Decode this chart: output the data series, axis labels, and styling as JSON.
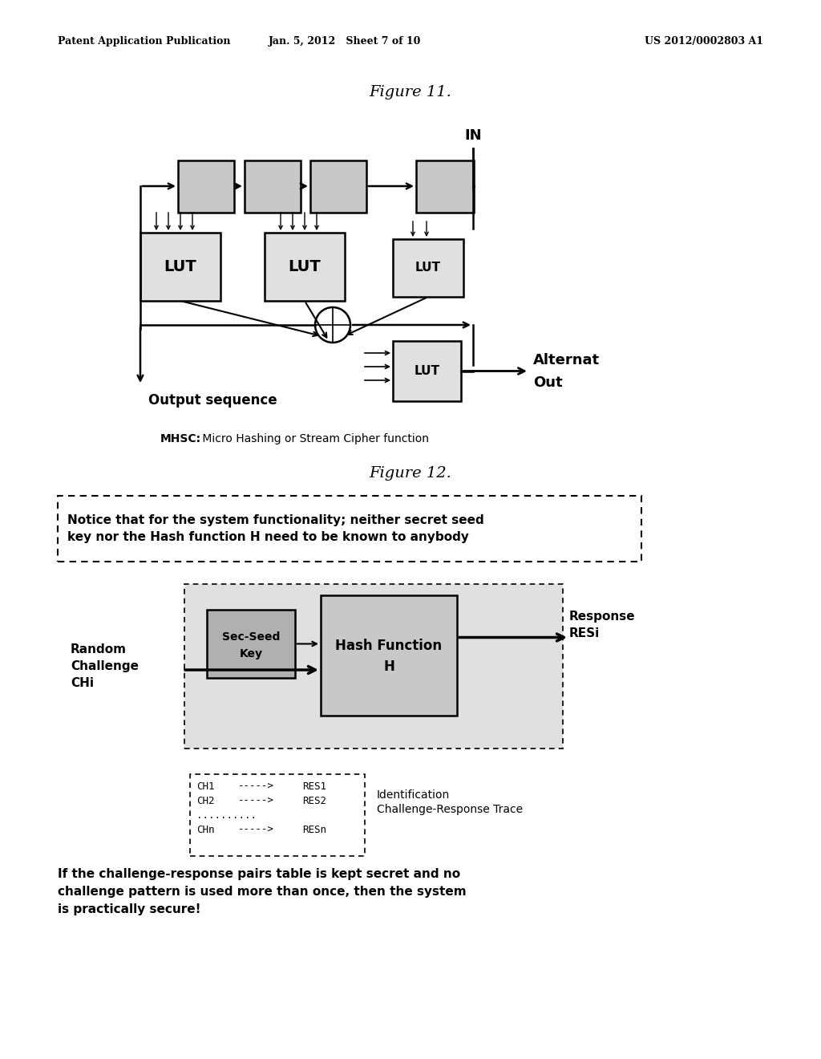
{
  "header_left": "Patent Application Publication",
  "header_center": "Jan. 5, 2012   Sheet 7 of 10",
  "header_right": "US 2012/0002803 A1",
  "fig11_title": "Figure 11.",
  "fig12_title": "Figure 12.",
  "mhsc_label_bold": "MHSC:",
  "mhsc_label_normal": " Micro Hashing or Stream Cipher function",
  "notice_text": "Notice that for the system functionality; neither secret seed\nkey nor the Hash function H need to be known to anybody",
  "bottom_text": "If the challenge-response pairs table is kept secret and no\nchallenge pattern is used more than once, then the system\nis practically secure!",
  "bg_color": "#ffffff",
  "sr_box_fill": "#c8c8c8",
  "lut_fill": "#e0e0e0",
  "hash_fill": "#c8c8c8",
  "ssk_fill": "#b0b0b0",
  "outer_fill": "#e0e0e0"
}
